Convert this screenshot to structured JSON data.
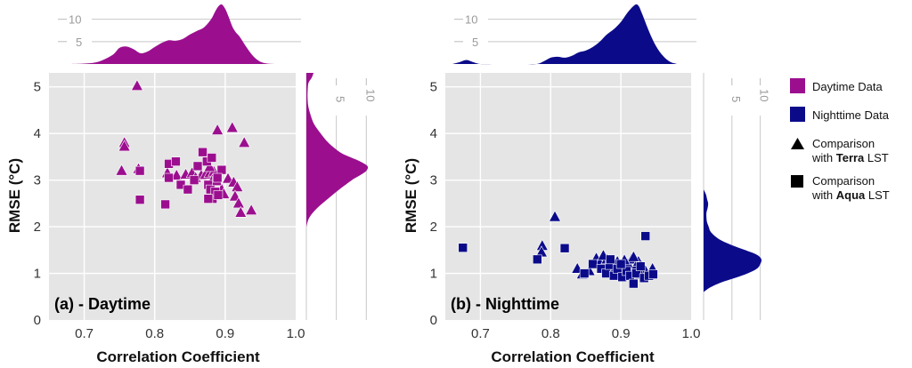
{
  "figure": {
    "legend_position": "right"
  },
  "legend": {
    "daytime": {
      "label": "Daytime Data",
      "color": "#9b0f8f"
    },
    "nighttime": {
      "label": "Nighttime Data",
      "color": "#0b0b8a"
    },
    "terra": {
      "line1": "Comparison",
      "pre": "with ",
      "bold": "Terra",
      "post": " LST",
      "shape": "triangle-icon"
    },
    "aqua": {
      "line1": "Comparison",
      "pre": "with ",
      "bold": "Aqua",
      "post": " LST",
      "shape": "square-icon"
    }
  },
  "chart_data": [
    {
      "type": "scatter",
      "title": "(a) - Daytime",
      "xlabel": "Correlation Coefficient",
      "ylabel": "RMSE (°C)",
      "xlim": [
        0.65,
        1.0
      ],
      "ylim": [
        0,
        5.3
      ],
      "xticks": [
        0.7,
        0.8,
        0.9,
        1.0
      ],
      "xtick_labels": [
        "0.7",
        "0.8",
        "0.9",
        "1.0"
      ],
      "yticks": [
        0,
        1,
        2,
        3,
        4,
        5
      ],
      "ytick_labels": [
        "0",
        "1",
        "2",
        "3",
        "4",
        "5"
      ],
      "grid": true,
      "color": "#9b0f8f",
      "series": [
        {
          "name": "Comparison with Terra LST",
          "marker": "triangle",
          "points": [
            [
              0.775,
              5.02
            ],
            [
              0.757,
              3.8
            ],
            [
              0.757,
              3.72
            ],
            [
              0.753,
              3.2
            ],
            [
              0.777,
              3.24
            ],
            [
              0.818,
              3.15
            ],
            [
              0.831,
              3.1
            ],
            [
              0.844,
              3.12
            ],
            [
              0.853,
              3.15
            ],
            [
              0.858,
              3.05
            ],
            [
              0.866,
              3.1
            ],
            [
              0.872,
              3.12
            ],
            [
              0.878,
              3.15
            ],
            [
              0.884,
              3.18
            ],
            [
              0.882,
              3.0
            ],
            [
              0.889,
              4.07
            ],
            [
              0.91,
              4.12
            ],
            [
              0.927,
              3.8
            ],
            [
              0.904,
              3.03
            ],
            [
              0.912,
              2.95
            ],
            [
              0.917,
              2.85
            ],
            [
              0.914,
              2.65
            ],
            [
              0.919,
              2.5
            ],
            [
              0.922,
              2.3
            ],
            [
              0.937,
              2.35
            ],
            [
              0.878,
              3.28
            ],
            [
              0.895,
              2.8
            ],
            [
              0.898,
              2.7
            ]
          ]
        },
        {
          "name": "Comparison with Aqua LST",
          "marker": "square",
          "points": [
            [
              0.779,
              3.2
            ],
            [
              0.779,
              2.58
            ],
            [
              0.82,
              3.35
            ],
            [
              0.83,
              3.4
            ],
            [
              0.82,
              3.05
            ],
            [
              0.837,
              2.9
            ],
            [
              0.815,
              2.48
            ],
            [
              0.847,
              2.8
            ],
            [
              0.856,
              3.0
            ],
            [
              0.861,
              3.3
            ],
            [
              0.868,
              3.6
            ],
            [
              0.874,
              3.4
            ],
            [
              0.881,
              3.48
            ],
            [
              0.876,
              2.9
            ],
            [
              0.879,
              2.8
            ],
            [
              0.882,
              2.6
            ],
            [
              0.886,
              2.75
            ],
            [
              0.888,
              2.98
            ],
            [
              0.89,
              2.68
            ],
            [
              0.895,
              3.22
            ],
            [
              0.876,
              2.6
            ],
            [
              0.889,
              3.05
            ]
          ]
        }
      ],
      "marginal_x": {
        "type": "density",
        "tick_values": [
          5,
          10
        ],
        "tick_labels": [
          "5",
          "10"
        ],
        "max_value": 13.5,
        "x": [
          0.68,
          0.7,
          0.72,
          0.74,
          0.75,
          0.76,
          0.77,
          0.78,
          0.79,
          0.8,
          0.81,
          0.82,
          0.83,
          0.84,
          0.85,
          0.86,
          0.87,
          0.88,
          0.885,
          0.89,
          0.895,
          0.9,
          0.905,
          0.91,
          0.915,
          0.92,
          0.93,
          0.94,
          0.95,
          0.96,
          0.97
        ],
        "density": [
          0,
          0.1,
          0.5,
          2.0,
          3.6,
          3.9,
          3.3,
          2.4,
          2.8,
          3.8,
          4.7,
          5.3,
          5.2,
          5.6,
          6.6,
          7.4,
          8.2,
          10.0,
          11.5,
          12.8,
          13.3,
          12.3,
          10.5,
          8.4,
          7.1,
          6.2,
          3.8,
          1.7,
          0.5,
          0.1,
          0
        ]
      },
      "marginal_y": {
        "type": "density",
        "tick_values": [
          5,
          10
        ],
        "tick_labels": [
          "5",
          "10"
        ],
        "max_value": 11,
        "y": [
          2.0,
          2.2,
          2.4,
          2.6,
          2.8,
          3.0,
          3.1,
          3.2,
          3.3,
          3.4,
          3.5,
          3.6,
          3.8,
          4.0,
          4.2,
          4.4,
          4.6,
          4.8,
          5.0,
          5.1,
          5.2,
          5.3
        ],
        "density": [
          0,
          0.5,
          1.8,
          3.6,
          5.5,
          7.6,
          8.9,
          10.0,
          10.2,
          9.0,
          7.2,
          5.6,
          3.7,
          2.4,
          1.3,
          0.7,
          0.3,
          0.2,
          0.25,
          0.4,
          0.9,
          1.2
        ]
      }
    },
    {
      "type": "scatter",
      "title": "(b) - Nighttime",
      "xlabel": "Correlation Coefficient",
      "ylabel": "RMSE (°C)",
      "xlim": [
        0.65,
        1.0
      ],
      "ylim": [
        0,
        5.3
      ],
      "xticks": [
        0.7,
        0.8,
        0.9,
        1.0
      ],
      "xtick_labels": [
        "0.7",
        "0.8",
        "0.9",
        "1.0"
      ],
      "yticks": [
        0,
        1,
        2,
        3,
        4,
        5
      ],
      "ytick_labels": [
        "0",
        "1",
        "2",
        "3",
        "4",
        "5"
      ],
      "grid": true,
      "color": "#0b0b8a",
      "series": [
        {
          "name": "Comparison with Terra LST",
          "marker": "triangle",
          "points": [
            [
              0.806,
              2.21
            ],
            [
              0.788,
              1.59
            ],
            [
              0.787,
              1.45
            ],
            [
              0.838,
              1.1
            ],
            [
              0.845,
              0.98
            ],
            [
              0.855,
              1.05
            ],
            [
              0.865,
              1.32
            ],
            [
              0.87,
              1.22
            ],
            [
              0.875,
              1.15
            ],
            [
              0.88,
              1.3
            ],
            [
              0.884,
              1.05
            ],
            [
              0.888,
              1.2
            ],
            [
              0.892,
              1.1
            ],
            [
              0.895,
              1.25
            ],
            [
              0.9,
              1.15
            ],
            [
              0.905,
              1.05
            ],
            [
              0.91,
              1.2
            ],
            [
              0.915,
              1.3
            ],
            [
              0.92,
              1.1
            ],
            [
              0.925,
              1.25
            ],
            [
              0.93,
              1.15
            ],
            [
              0.935,
              1.05
            ],
            [
              0.945,
              1.1
            ],
            [
              0.875,
              1.38
            ],
            [
              0.897,
              0.95
            ],
            [
              0.918,
              1.35
            ],
            [
              0.928,
              0.98
            ],
            [
              0.905,
              1.28
            ]
          ]
        },
        {
          "name": "Comparison with Aqua LST",
          "marker": "square",
          "points": [
            [
              0.675,
              1.55
            ],
            [
              0.781,
              1.3
            ],
            [
              0.82,
              1.54
            ],
            [
              0.848,
              1.0
            ],
            [
              0.86,
              1.2
            ],
            [
              0.872,
              1.1
            ],
            [
              0.879,
              1.0
            ],
            [
              0.884,
              1.18
            ],
            [
              0.89,
              0.95
            ],
            [
              0.895,
              1.1
            ],
            [
              0.902,
              0.92
            ],
            [
              0.908,
              1.05
            ],
            [
              0.913,
              0.95
            ],
            [
              0.918,
              0.78
            ],
            [
              0.922,
              1.0
            ],
            [
              0.928,
              1.15
            ],
            [
              0.933,
              0.9
            ],
            [
              0.935,
              1.8
            ],
            [
              0.94,
              0.95
            ],
            [
              0.946,
              0.98
            ],
            [
              0.9,
              1.2
            ],
            [
              0.885,
              1.3
            ]
          ]
        }
      ],
      "marginal_x": {
        "type": "density",
        "tick_values": [
          5,
          10
        ],
        "tick_labels": [
          "5",
          "10"
        ],
        "max_value": 13.5,
        "x": [
          0.66,
          0.67,
          0.68,
          0.69,
          0.7,
          0.72,
          0.74,
          0.76,
          0.78,
          0.79,
          0.8,
          0.81,
          0.82,
          0.83,
          0.84,
          0.85,
          0.86,
          0.87,
          0.88,
          0.89,
          0.9,
          0.91,
          0.92,
          0.925,
          0.93,
          0.94,
          0.95,
          0.96,
          0.97,
          0.98
        ],
        "density": [
          0,
          0.4,
          0.9,
          0.4,
          0,
          0,
          0,
          0,
          0,
          0.6,
          1.4,
          1.6,
          1.4,
          1.8,
          2.6,
          3.0,
          3.8,
          5.0,
          6.6,
          7.8,
          9.4,
          11.6,
          13.2,
          13.0,
          11.3,
          7.3,
          4.0,
          1.8,
          0.5,
          0
        ]
      },
      "marginal_y": {
        "type": "density",
        "tick_values": [
          5,
          10
        ],
        "tick_labels": [
          "5",
          "10"
        ],
        "max_value": 11,
        "y": [
          0.6,
          0.7,
          0.8,
          0.9,
          1.0,
          1.1,
          1.2,
          1.3,
          1.4,
          1.5,
          1.6,
          1.7,
          1.8,
          1.9,
          2.0,
          2.1,
          2.2,
          2.3,
          2.4,
          2.5,
          2.6,
          2.7,
          2.8
        ],
        "density": [
          0,
          1.2,
          3.0,
          5.5,
          7.8,
          9.4,
          10.0,
          10.2,
          9.4,
          7.3,
          5.1,
          3.2,
          2.0,
          1.2,
          0.9,
          0.6,
          0.5,
          0.5,
          0.7,
          0.8,
          0.6,
          0.4,
          0
        ]
      }
    }
  ]
}
